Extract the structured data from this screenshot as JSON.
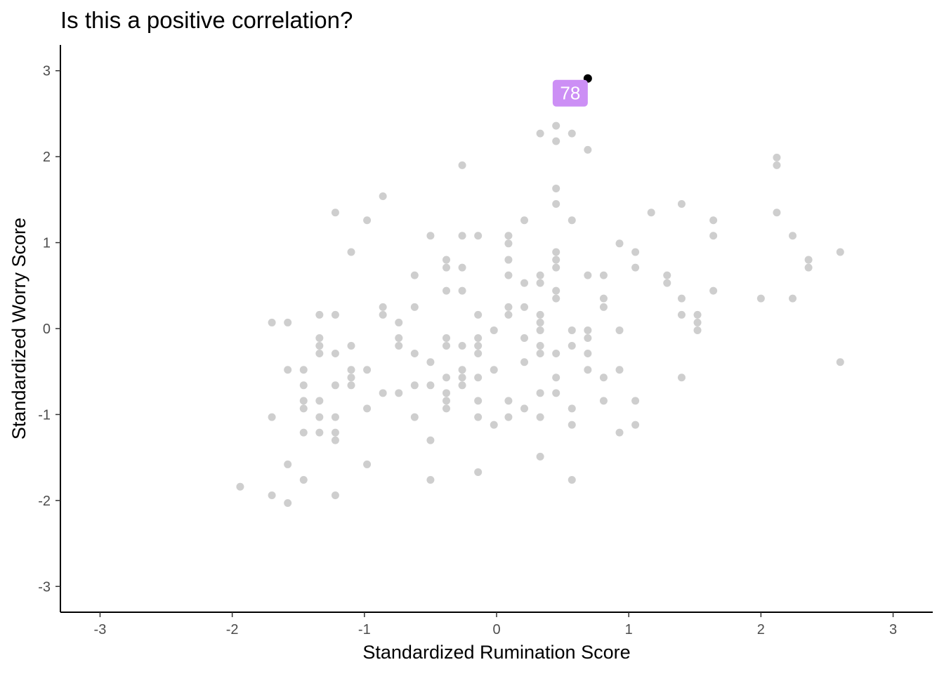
{
  "chart_data": {
    "type": "scatter",
    "title": "Is this a positive correlation?",
    "xlabel": "Standardized Rumination Score",
    "ylabel": "Standardized Worry Score",
    "xlim": [
      -3.3,
      3.3
    ],
    "ylim": [
      -3.3,
      3.3
    ],
    "xticks": [
      -3,
      -2,
      -1,
      0,
      1,
      2,
      3
    ],
    "yticks": [
      -3,
      -2,
      -1,
      0,
      1,
      2,
      3
    ],
    "xtick_labels": [
      "-3",
      "-2",
      "-1",
      "0",
      "1",
      "2",
      "3"
    ],
    "ytick_labels": [
      "-3",
      "-2",
      "-1",
      "0",
      "1",
      "2",
      "3"
    ],
    "grid": false,
    "legend": "none",
    "colors": {
      "point": "#bebebe",
      "highlight_point": "#000000",
      "label_fill": "#cc8ff5",
      "label_text": "#ffffff",
      "axis": "#000000"
    },
    "points": [
      {
        "x": -1.94,
        "y": -1.84
      },
      {
        "x": -1.7,
        "y": -1.94
      },
      {
        "x": -1.7,
        "y": -1.03
      },
      {
        "x": -1.7,
        "y": 0.07
      },
      {
        "x": -1.58,
        "y": 0.07
      },
      {
        "x": -1.58,
        "y": -0.48
      },
      {
        "x": -1.58,
        "y": -1.58
      },
      {
        "x": -1.58,
        "y": -2.03
      },
      {
        "x": -1.46,
        "y": -0.48
      },
      {
        "x": -1.46,
        "y": -0.66
      },
      {
        "x": -1.46,
        "y": -0.84
      },
      {
        "x": -1.46,
        "y": -0.93
      },
      {
        "x": -1.46,
        "y": -1.21
      },
      {
        "x": -1.46,
        "y": -1.76
      },
      {
        "x": -1.34,
        "y": 0.16
      },
      {
        "x": -1.34,
        "y": -0.11
      },
      {
        "x": -1.34,
        "y": -0.2
      },
      {
        "x": -1.34,
        "y": -0.29
      },
      {
        "x": -1.34,
        "y": -0.84
      },
      {
        "x": -1.34,
        "y": -1.03
      },
      {
        "x": -1.34,
        "y": -1.21
      },
      {
        "x": -1.22,
        "y": 1.35
      },
      {
        "x": -1.22,
        "y": 0.16
      },
      {
        "x": -1.22,
        "y": -0.29
      },
      {
        "x": -1.22,
        "y": -0.66
      },
      {
        "x": -1.22,
        "y": -1.03
      },
      {
        "x": -1.22,
        "y": -1.21
      },
      {
        "x": -1.22,
        "y": -1.3
      },
      {
        "x": -1.22,
        "y": -1.94
      },
      {
        "x": -1.1,
        "y": 0.89
      },
      {
        "x": -1.1,
        "y": -0.2
      },
      {
        "x": -1.1,
        "y": -0.48
      },
      {
        "x": -1.1,
        "y": -0.57
      },
      {
        "x": -1.1,
        "y": -0.66
      },
      {
        "x": -0.98,
        "y": 1.26
      },
      {
        "x": -0.98,
        "y": -0.48
      },
      {
        "x": -0.98,
        "y": -0.93
      },
      {
        "x": -0.98,
        "y": -1.58
      },
      {
        "x": -0.86,
        "y": 1.54
      },
      {
        "x": -0.86,
        "y": 0.25
      },
      {
        "x": -0.86,
        "y": 0.16
      },
      {
        "x": -0.86,
        "y": -0.75
      },
      {
        "x": -0.74,
        "y": 0.07
      },
      {
        "x": -0.74,
        "y": -0.11
      },
      {
        "x": -0.74,
        "y": -0.2
      },
      {
        "x": -0.74,
        "y": -0.75
      },
      {
        "x": -0.62,
        "y": 0.62
      },
      {
        "x": -0.62,
        "y": 0.25
      },
      {
        "x": -0.62,
        "y": -0.29
      },
      {
        "x": -0.62,
        "y": -0.66
      },
      {
        "x": -0.62,
        "y": -1.03
      },
      {
        "x": -0.5,
        "y": 1.08
      },
      {
        "x": -0.5,
        "y": -0.39
      },
      {
        "x": -0.5,
        "y": -0.66
      },
      {
        "x": -0.5,
        "y": -1.3
      },
      {
        "x": -0.5,
        "y": -1.76
      },
      {
        "x": -0.38,
        "y": 0.8
      },
      {
        "x": -0.38,
        "y": 0.71
      },
      {
        "x": -0.38,
        "y": 0.44
      },
      {
        "x": -0.38,
        "y": -0.11
      },
      {
        "x": -0.38,
        "y": -0.2
      },
      {
        "x": -0.38,
        "y": -0.57
      },
      {
        "x": -0.38,
        "y": -0.75
      },
      {
        "x": -0.38,
        "y": -0.84
      },
      {
        "x": -0.38,
        "y": -0.93
      },
      {
        "x": -0.26,
        "y": 1.9
      },
      {
        "x": -0.26,
        "y": 1.08
      },
      {
        "x": -0.26,
        "y": 0.71
      },
      {
        "x": -0.26,
        "y": 0.44
      },
      {
        "x": -0.26,
        "y": -0.2
      },
      {
        "x": -0.26,
        "y": -0.48
      },
      {
        "x": -0.26,
        "y": -0.57
      },
      {
        "x": -0.26,
        "y": -0.66
      },
      {
        "x": -0.14,
        "y": 1.08
      },
      {
        "x": -0.14,
        "y": 0.16
      },
      {
        "x": -0.14,
        "y": -0.11
      },
      {
        "x": -0.14,
        "y": -0.2
      },
      {
        "x": -0.14,
        "y": -0.29
      },
      {
        "x": -0.14,
        "y": -0.57
      },
      {
        "x": -0.14,
        "y": -0.84
      },
      {
        "x": -0.14,
        "y": -1.03
      },
      {
        "x": -0.14,
        "y": -1.67
      },
      {
        "x": -0.02,
        "y": -0.02
      },
      {
        "x": -0.02,
        "y": -0.48
      },
      {
        "x": -0.02,
        "y": -1.12
      },
      {
        "x": 0.09,
        "y": 1.08
      },
      {
        "x": 0.09,
        "y": 0.99
      },
      {
        "x": 0.09,
        "y": 0.8
      },
      {
        "x": 0.09,
        "y": 0.62
      },
      {
        "x": 0.09,
        "y": 0.25
      },
      {
        "x": 0.09,
        "y": 0.16
      },
      {
        "x": 0.09,
        "y": -0.84
      },
      {
        "x": 0.09,
        "y": -1.03
      },
      {
        "x": 0.21,
        "y": 1.26
      },
      {
        "x": 0.21,
        "y": 0.53
      },
      {
        "x": 0.21,
        "y": 0.25
      },
      {
        "x": 0.21,
        "y": -0.11
      },
      {
        "x": 0.21,
        "y": -0.39
      },
      {
        "x": 0.21,
        "y": -0.93
      },
      {
        "x": 0.33,
        "y": 2.27
      },
      {
        "x": 0.33,
        "y": 0.62
      },
      {
        "x": 0.33,
        "y": 0.53
      },
      {
        "x": 0.33,
        "y": 0.16
      },
      {
        "x": 0.33,
        "y": 0.07
      },
      {
        "x": 0.33,
        "y": -0.02
      },
      {
        "x": 0.33,
        "y": -0.2
      },
      {
        "x": 0.33,
        "y": -0.29
      },
      {
        "x": 0.33,
        "y": -0.75
      },
      {
        "x": 0.33,
        "y": -1.03
      },
      {
        "x": 0.33,
        "y": -1.49
      },
      {
        "x": 0.45,
        "y": 2.36
      },
      {
        "x": 0.45,
        "y": 2.18
      },
      {
        "x": 0.45,
        "y": 1.63
      },
      {
        "x": 0.45,
        "y": 1.45
      },
      {
        "x": 0.45,
        "y": 0.89
      },
      {
        "x": 0.45,
        "y": 0.8
      },
      {
        "x": 0.45,
        "y": 0.71
      },
      {
        "x": 0.45,
        "y": 0.44
      },
      {
        "x": 0.45,
        "y": 0.35
      },
      {
        "x": 0.45,
        "y": -0.29
      },
      {
        "x": 0.45,
        "y": -0.57
      },
      {
        "x": 0.45,
        "y": -0.75
      },
      {
        "x": 0.57,
        "y": 2.27
      },
      {
        "x": 0.57,
        "y": 1.26
      },
      {
        "x": 0.57,
        "y": -0.02
      },
      {
        "x": 0.57,
        "y": -0.2
      },
      {
        "x": 0.57,
        "y": -0.93
      },
      {
        "x": 0.57,
        "y": -1.12
      },
      {
        "x": 0.57,
        "y": -1.76
      },
      {
        "x": 0.69,
        "y": 2.08
      },
      {
        "x": 0.69,
        "y": 0.62
      },
      {
        "x": 0.69,
        "y": -0.02
      },
      {
        "x": 0.69,
        "y": -0.11
      },
      {
        "x": 0.69,
        "y": -0.29
      },
      {
        "x": 0.69,
        "y": -0.48
      },
      {
        "x": 0.81,
        "y": 0.62
      },
      {
        "x": 0.81,
        "y": 0.35
      },
      {
        "x": 0.81,
        "y": 0.25
      },
      {
        "x": 0.81,
        "y": -0.57
      },
      {
        "x": 0.81,
        "y": -0.84
      },
      {
        "x": 0.93,
        "y": 0.99
      },
      {
        "x": 0.93,
        "y": -0.02
      },
      {
        "x": 0.93,
        "y": -0.48
      },
      {
        "x": 0.93,
        "y": -1.21
      },
      {
        "x": 1.05,
        "y": 0.89
      },
      {
        "x": 1.05,
        "y": 0.71
      },
      {
        "x": 1.05,
        "y": -0.84
      },
      {
        "x": 1.05,
        "y": -1.12
      },
      {
        "x": 1.17,
        "y": 1.35
      },
      {
        "x": 1.29,
        "y": 0.62
      },
      {
        "x": 1.29,
        "y": 0.53
      },
      {
        "x": 1.4,
        "y": 1.45
      },
      {
        "x": 1.4,
        "y": 0.35
      },
      {
        "x": 1.4,
        "y": 0.16
      },
      {
        "x": 1.4,
        "y": -0.57
      },
      {
        "x": 1.52,
        "y": 0.16
      },
      {
        "x": 1.52,
        "y": 0.07
      },
      {
        "x": 1.52,
        "y": -0.02
      },
      {
        "x": 1.64,
        "y": 1.26
      },
      {
        "x": 1.64,
        "y": 1.08
      },
      {
        "x": 1.64,
        "y": 0.44
      },
      {
        "x": 2.0,
        "y": 0.35
      },
      {
        "x": 2.12,
        "y": 1.99
      },
      {
        "x": 2.12,
        "y": 1.9
      },
      {
        "x": 2.12,
        "y": 1.35
      },
      {
        "x": 2.24,
        "y": 1.08
      },
      {
        "x": 2.24,
        "y": 0.35
      },
      {
        "x": 2.36,
        "y": 0.8
      },
      {
        "x": 2.36,
        "y": 0.71
      },
      {
        "x": 2.6,
        "y": 0.89
      },
      {
        "x": 2.6,
        "y": -0.39
      }
    ],
    "highlight": {
      "x": 0.69,
      "y": 2.91,
      "label": "78"
    }
  }
}
